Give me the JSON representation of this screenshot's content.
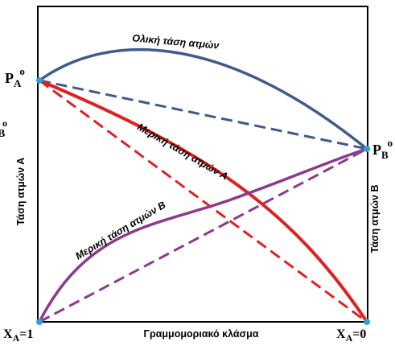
{
  "labels": {
    "pa0_main": "P",
    "pa0_sub": "A",
    "pa0_sup": "o",
    "pb0_main": "P",
    "pb0_sub": "B",
    "pb0_sup": "o",
    "pb0_cut_main": "B",
    "pb0_cut_sup": "o",
    "xa1_main": "X",
    "xa1_sub": "A",
    "xa1_rest": "=1",
    "xa0_main": "X",
    "xa0_sub": "A",
    "xa0_rest": "=0",
    "total_pressure": "Ολική τάση ατμών",
    "partial_a": "Μερική τάση ατμών Α",
    "partial_b": "Μερική τάση ατμών Β",
    "x_axis": "Γραμμομοριακό κλάσμα",
    "left_axis": "Τάση ατμών Α",
    "right_axis": "Τάση ατμών Β"
  },
  "colors": {
    "total_curve": "#3f5a8c",
    "partial_a_curve": "#dd2222",
    "partial_b_curve": "#8c3a8c",
    "point_fill": "#29a3d6",
    "frame": "#000000"
  }
}
